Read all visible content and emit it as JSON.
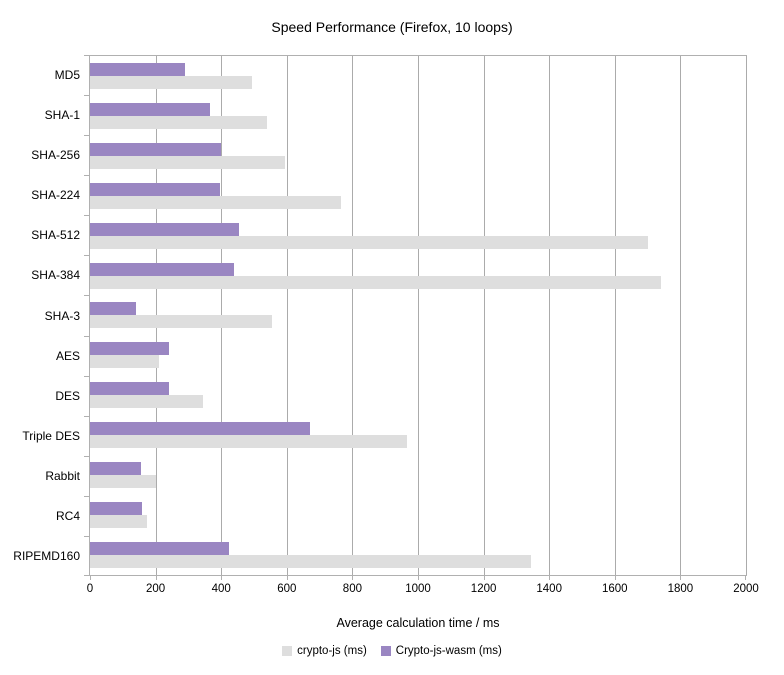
{
  "chart_data": {
    "type": "bar",
    "orientation": "horizontal",
    "title": "Speed Performance (Firefox, 10 loops)",
    "xlabel": "Average calculation time / ms",
    "categories": [
      "MD5",
      "SHA-1",
      "SHA-256",
      "SHA-224",
      "SHA-512",
      "SHA-384",
      "SHA-3",
      "AES",
      "DES",
      "Triple DES",
      "Rabbit",
      "RC4",
      "RIPEMD160"
    ],
    "series": [
      {
        "name": "crypto-js (ms)",
        "color": "#dedede",
        "values": [
          495,
          540,
          595,
          765,
          1700,
          1740,
          555,
          210,
          345,
          965,
          200,
          175,
          1345
        ]
      },
      {
        "name": "Crypto-js-wasm (ms)",
        "color": "#9a86c2",
        "values": [
          290,
          365,
          400,
          395,
          455,
          440,
          140,
          240,
          240,
          670,
          155,
          160,
          425
        ]
      }
    ],
    "xlim": [
      0,
      2000
    ],
    "xticks": [
      0,
      200,
      400,
      600,
      800,
      1000,
      1200,
      1400,
      1600,
      1800,
      2000
    ],
    "grid": true,
    "legend_position": "bottom"
  },
  "colors": {
    "gridline": "#ababab",
    "axis": "#b0b0b0",
    "text": "#000000",
    "background": "#ffffff"
  }
}
